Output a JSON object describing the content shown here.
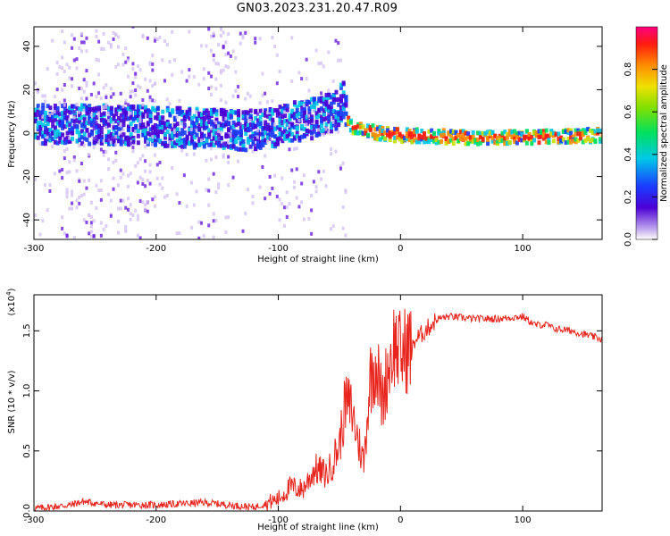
{
  "title": "GN03.2023.231.20.47.R09",
  "colors": {
    "line": "#e8241c",
    "axis": "#000000"
  },
  "chart_data": [
    {
      "type": "heatmap",
      "xlabel": "Height of straight line (km)",
      "ylabel": "Frequency (Hz)",
      "xlim": [
        -300,
        165
      ],
      "ylim": [
        -49,
        49
      ],
      "xticks": [
        "-300",
        "-200",
        "-100",
        "0",
        "100"
      ],
      "yticks": [
        "-40",
        "-20",
        "0",
        "20",
        "40"
      ],
      "colorbar": {
        "label": "Normalized spectral amplitude",
        "range": [
          0,
          1
        ],
        "ticks": [
          "0.0",
          "0.2",
          "0.4",
          "0.6",
          "0.8"
        ]
      },
      "signal_track": [
        {
          "x": -300,
          "y": 4
        },
        {
          "x": -250,
          "y": 4
        },
        {
          "x": -200,
          "y": 3
        },
        {
          "x": -150,
          "y": 2
        },
        {
          "x": -130,
          "y": 1
        },
        {
          "x": -110,
          "y": 2
        },
        {
          "x": -90,
          "y": 5
        },
        {
          "x": -70,
          "y": 7
        },
        {
          "x": -55,
          "y": 10
        },
        {
          "x": -48,
          "y": 15
        },
        {
          "x": -42,
          "y": 3
        },
        {
          "x": -20,
          "y": 0
        },
        {
          "x": 0,
          "y": -1
        },
        {
          "x": 50,
          "y": -2
        },
        {
          "x": 100,
          "y": -2
        },
        {
          "x": 165,
          "y": -1
        }
      ]
    },
    {
      "type": "line",
      "xlabel": "Height of straight line (km)",
      "ylabel": "SNR (10 * v/v)",
      "y_multiplier": "(x10",
      "y_multiplier_exp": "4",
      "y_multiplier_close": ")",
      "xlim": [
        -300,
        165
      ],
      "ylim": [
        0,
        1.8
      ],
      "xticks": [
        "-300",
        "-200",
        "-100",
        "0",
        "100"
      ],
      "yticks": [
        "0.0",
        "0.5",
        "1.0",
        "1.5"
      ],
      "series": [
        {
          "x": [
            -300,
            -270,
            -260,
            -240,
            -200,
            -160,
            -140,
            -120,
            -100,
            -90,
            -80,
            -70,
            -60,
            -50,
            -45,
            -40,
            -35,
            -30,
            -25,
            -20,
            -15,
            -10,
            -5,
            0,
            5,
            10,
            20,
            30,
            40,
            60,
            80,
            100,
            110,
            120,
            125,
            140,
            165
          ],
          "y": [
            0.02,
            0.05,
            0.08,
            0.05,
            0.05,
            0.07,
            0.05,
            0.03,
            0.1,
            0.2,
            0.18,
            0.35,
            0.3,
            0.55,
            0.9,
            0.85,
            0.6,
            0.4,
            1.1,
            1.25,
            0.9,
            1.2,
            1.4,
            1.3,
            1.35,
            1.4,
            1.5,
            1.6,
            1.62,
            1.6,
            1.6,
            1.62,
            1.55,
            1.55,
            1.52,
            1.5,
            1.43
          ]
        }
      ]
    }
  ]
}
